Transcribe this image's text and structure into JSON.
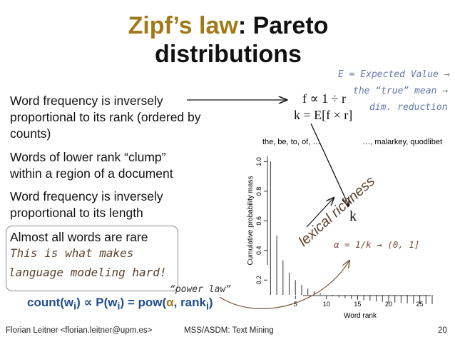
{
  "title": {
    "highlight": "Zipf’s law",
    "rest": ": Pareto distributions"
  },
  "bullets": [
    "Word frequency is inversely proportional to its rank (ordered by counts)",
    "Words of lower rank “clump” within a region of a document",
    "Word frequency is inversely proportional to its length",
    "Almost all words are rare"
  ],
  "handwritten": {
    "hard_line1": "This is what makes",
    "hard_line2": "language modeling hard!",
    "expected_line1": "E = Expected Value →",
    "expected_line2": "the “true” mean →",
    "expected_line3": "dim. reduction",
    "lexical": "lexical richness",
    "alpha_note": "α = 1/k → (0, 1]",
    "power_law": "“power law”"
  },
  "formulas": {
    "prop": "f ∝ 1 ÷ r",
    "k": "k = E[f × r]",
    "k_label": "k",
    "count_prefix": "count(w",
    "count_sub": "i",
    "count_mid": ") ∝ P(w",
    "count_sub2": "i",
    "count_mid2": ") = pow(",
    "count_alpha": "α",
    "count_mid3": ", rank",
    "count_sub3": "i",
    "count_end": ")"
  },
  "footer": {
    "left": "Florian Leitner <florian.leitner@upm.es>",
    "center": "MSS/ASDM: Text Mining",
    "right": "20"
  },
  "colors": {
    "title_accent": "#a07a18",
    "formula_blue": "#1f4d8f",
    "hand_brown": "#5a3f2a",
    "hand_blue": "#6478a8"
  },
  "chart_data": {
    "type": "bar",
    "xlabel": "Word rank",
    "ylabel": "Cumulative probability mass",
    "top_left_label": "the, be, to, of, …",
    "top_right_label": "…, malarkey, quodlibet",
    "x": [
      1,
      2,
      3,
      4,
      5,
      6,
      7,
      8,
      9,
      10,
      11,
      12,
      13,
      14,
      15,
      16,
      17,
      18,
      19,
      20,
      21,
      22,
      23,
      24,
      25,
      26,
      27
    ],
    "values": [
      1.0,
      0.5,
      0.333,
      0.25,
      0.2,
      0.167,
      0.143,
      0.125,
      0.111,
      0.1,
      0.091,
      0.083,
      0.077,
      0.071,
      0.067,
      0.063,
      0.059,
      0.056,
      0.053,
      0.05,
      0.048,
      0.045,
      0.043,
      0.042,
      0.04,
      0.038,
      0.037
    ],
    "xlim": [
      0.5,
      27
    ],
    "ylim": [
      0.1,
      1.05
    ],
    "xticks": [
      5,
      10,
      15,
      20,
      25
    ],
    "yticks": [
      0.2,
      0.4,
      0.6,
      0.8,
      1.0
    ],
    "ytick_labels": [
      "0.2",
      "0.4",
      "0.6",
      "0.8",
      "1.0"
    ],
    "grid": false
  }
}
